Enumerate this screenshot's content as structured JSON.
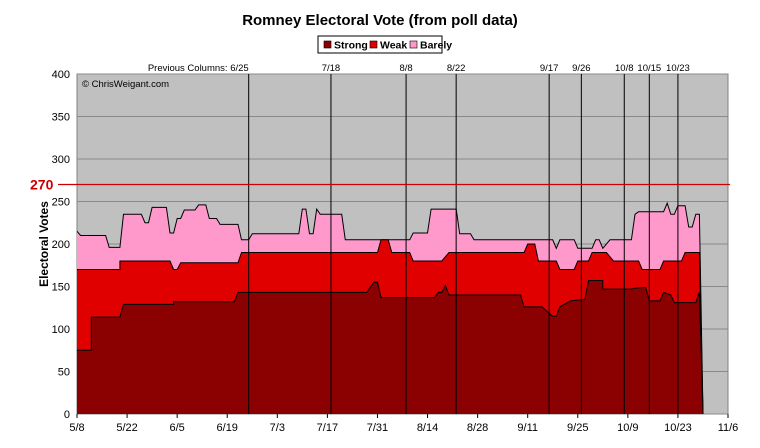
{
  "chart_data": {
    "type": "area",
    "title": "Romney Electoral Vote (from poll data)",
    "xlabel": "",
    "ylabel": "Electoral Votes",
    "ylim": [
      0,
      400
    ],
    "yticks": [
      0,
      50,
      100,
      150,
      200,
      250,
      300,
      350,
      400
    ],
    "x_range_days": [
      0,
      182
    ],
    "x_ticks": [
      {
        "label": "5/8",
        "day": 0
      },
      {
        "label": "5/22",
        "day": 14
      },
      {
        "label": "6/5",
        "day": 28
      },
      {
        "label": "6/19",
        "day": 42
      },
      {
        "label": "7/3",
        "day": 56
      },
      {
        "label": "7/17",
        "day": 70
      },
      {
        "label": "7/31",
        "day": 84
      },
      {
        "label": "8/14",
        "day": 98
      },
      {
        "label": "8/28",
        "day": 112
      },
      {
        "label": "9/11",
        "day": 126
      },
      {
        "label": "9/25",
        "day": 140
      },
      {
        "label": "10/9",
        "day": 154
      },
      {
        "label": "10/23",
        "day": 168
      },
      {
        "label": "11/6",
        "day": 182
      }
    ],
    "grid": true,
    "background_color": "#c0c0c0",
    "stacking": "cumulative",
    "legend_position": "top-center",
    "series": [
      {
        "name": "Strong",
        "color": "#8b0000",
        "line_color": "#000000",
        "points": [
          [
            0,
            75
          ],
          [
            4,
            75
          ],
          [
            4,
            114
          ],
          [
            12,
            114
          ],
          [
            13,
            129
          ],
          [
            27,
            129
          ],
          [
            27,
            132
          ],
          [
            44,
            132
          ],
          [
            45,
            143
          ],
          [
            79,
            143
          ],
          [
            81,
            143
          ],
          [
            83,
            155
          ],
          [
            84,
            155
          ],
          [
            85,
            137
          ],
          [
            99,
            137
          ],
          [
            100,
            137
          ],
          [
            101,
            143
          ],
          [
            102,
            143
          ],
          [
            103,
            151
          ],
          [
            104,
            140
          ],
          [
            116,
            140
          ],
          [
            117,
            140
          ],
          [
            118,
            140
          ],
          [
            124,
            140
          ],
          [
            125,
            126
          ],
          [
            130,
            126
          ],
          [
            131,
            122
          ],
          [
            133,
            115
          ],
          [
            134,
            115
          ],
          [
            135,
            126
          ],
          [
            138,
            133
          ],
          [
            142,
            135
          ],
          [
            143,
            157
          ],
          [
            147,
            157
          ],
          [
            147,
            147
          ],
          [
            155,
            147
          ],
          [
            156,
            148
          ],
          [
            159,
            149
          ],
          [
            160,
            133
          ],
          [
            163,
            133
          ],
          [
            164,
            143
          ],
          [
            166,
            140
          ],
          [
            167,
            131
          ],
          [
            173,
            131
          ],
          [
            174,
            144
          ],
          [
            174,
            144
          ],
          [
            175,
            0
          ]
        ]
      },
      {
        "name": "Weak",
        "color": "#e00000",
        "line_color": "#000000",
        "points": [
          [
            0,
            170
          ],
          [
            12,
            170
          ],
          [
            12,
            180
          ],
          [
            26,
            180
          ],
          [
            27,
            170
          ],
          [
            28,
            170
          ],
          [
            29,
            178
          ],
          [
            45,
            178
          ],
          [
            46,
            190
          ],
          [
            61,
            190
          ],
          [
            62,
            190
          ],
          [
            84,
            190
          ],
          [
            85,
            205
          ],
          [
            87,
            205
          ],
          [
            88,
            190
          ],
          [
            93,
            190
          ],
          [
            94,
            180
          ],
          [
            101,
            180
          ],
          [
            102,
            180
          ],
          [
            104,
            190
          ],
          [
            125,
            190
          ],
          [
            126,
            200
          ],
          [
            128,
            200
          ],
          [
            129,
            180
          ],
          [
            134,
            180
          ],
          [
            135,
            170
          ],
          [
            139,
            170
          ],
          [
            140,
            180
          ],
          [
            142,
            180
          ],
          [
            143,
            180
          ],
          [
            144,
            190
          ],
          [
            148,
            190
          ],
          [
            150,
            180
          ],
          [
            155,
            180
          ],
          [
            156,
            180
          ],
          [
            157,
            180
          ],
          [
            158,
            170
          ],
          [
            163,
            170
          ],
          [
            164,
            180
          ],
          [
            169,
            180
          ],
          [
            170,
            190
          ],
          [
            173,
            190
          ],
          [
            174,
            190
          ],
          [
            175,
            0
          ]
        ]
      },
      {
        "name": "Barely",
        "color": "#ff99cc",
        "line_color": "#000000",
        "points": [
          [
            0,
            215
          ],
          [
            1,
            210
          ],
          [
            8,
            210
          ],
          [
            9,
            196
          ],
          [
            10,
            196
          ],
          [
            12,
            196
          ],
          [
            13,
            235
          ],
          [
            18,
            235
          ],
          [
            19,
            225
          ],
          [
            20,
            225
          ],
          [
            21,
            243
          ],
          [
            25,
            243
          ],
          [
            26,
            213
          ],
          [
            27,
            213
          ],
          [
            28,
            230
          ],
          [
            29,
            230
          ],
          [
            30,
            240
          ],
          [
            33,
            240
          ],
          [
            34,
            246
          ],
          [
            36,
            246
          ],
          [
            37,
            230
          ],
          [
            39,
            230
          ],
          [
            40,
            223
          ],
          [
            45,
            223
          ],
          [
            46,
            205
          ],
          [
            48,
            205
          ],
          [
            49,
            212
          ],
          [
            62,
            212
          ],
          [
            63,
            241
          ],
          [
            64,
            241
          ],
          [
            65,
            212
          ],
          [
            66,
            212
          ],
          [
            67,
            241
          ],
          [
            68,
            235
          ],
          [
            74,
            235
          ],
          [
            75,
            205
          ],
          [
            84,
            205
          ],
          [
            85,
            205
          ],
          [
            87,
            205
          ],
          [
            88,
            205
          ],
          [
            90,
            205
          ],
          [
            93,
            205
          ],
          [
            94,
            213
          ],
          [
            98,
            213
          ],
          [
            99,
            241
          ],
          [
            106,
            241
          ],
          [
            107,
            212
          ],
          [
            110,
            212
          ],
          [
            111,
            205
          ],
          [
            124,
            205
          ],
          [
            125,
            205
          ],
          [
            126,
            205
          ],
          [
            128,
            205
          ],
          [
            129,
            205
          ],
          [
            133,
            205
          ],
          [
            134,
            195
          ],
          [
            135,
            205
          ],
          [
            139,
            205
          ],
          [
            140,
            195
          ],
          [
            144,
            195
          ],
          [
            145,
            205
          ],
          [
            146,
            205
          ],
          [
            147,
            195
          ],
          [
            149,
            205
          ],
          [
            155,
            205
          ],
          [
            156,
            235
          ],
          [
            157,
            238
          ],
          [
            164,
            238
          ],
          [
            165,
            248
          ],
          [
            166,
            235
          ],
          [
            167,
            235
          ],
          [
            168,
            245
          ],
          [
            170,
            245
          ],
          [
            171,
            220
          ],
          [
            172,
            220
          ],
          [
            173,
            235
          ],
          [
            174,
            235
          ],
          [
            175,
            0
          ]
        ]
      }
    ],
    "reference_line": {
      "value": 270,
      "label": "270",
      "color": "#cc0000"
    },
    "event_lines": [
      {
        "label": "6/25",
        "day": 48,
        "text_prefix": "Previous Columns: "
      },
      {
        "label": "7/18",
        "day": 71
      },
      {
        "label": "8/8",
        "day": 92
      },
      {
        "label": "8/22",
        "day": 106
      },
      {
        "label": "9/17",
        "day": 132
      },
      {
        "label": "9/26",
        "day": 141
      },
      {
        "label": "10/8",
        "day": 153
      },
      {
        "label": "10/15",
        "day": 160
      },
      {
        "label": "10/23",
        "day": 168
      }
    ],
    "watermark": "© ChrisWeigant.com"
  }
}
